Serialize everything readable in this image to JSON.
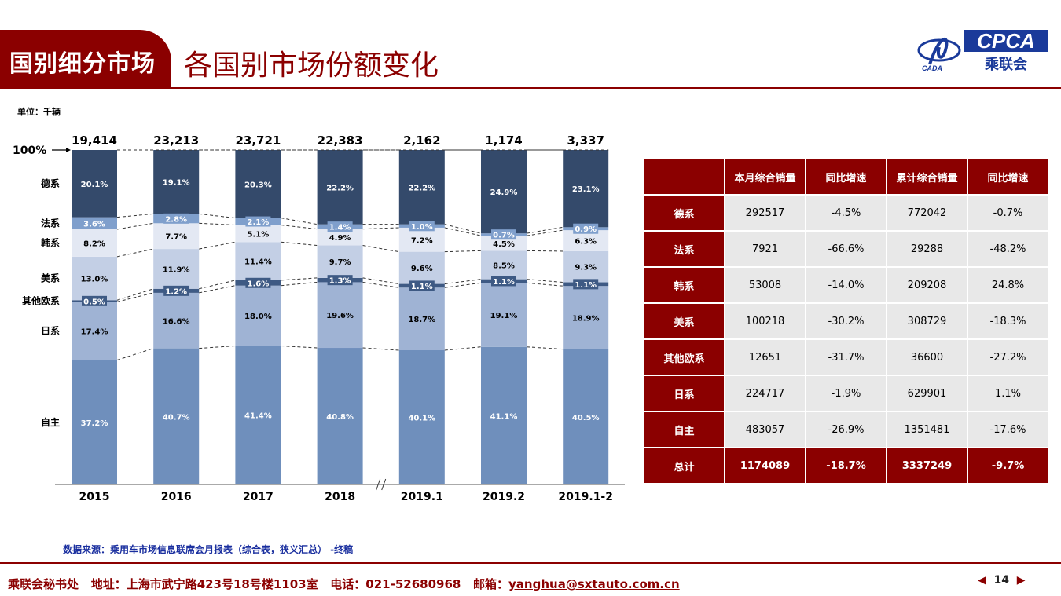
{
  "header": {
    "tag": "国别细分市场",
    "title": "各国别市场份额变化",
    "logo_text_en": "CPCA",
    "logo_text_cn": "乘联会",
    "logo_small": "CADA"
  },
  "unit_label": "单位：千辆",
  "chart_data": {
    "type": "bar",
    "stacked": "percent",
    "categories": [
      "2015",
      "2016",
      "2017",
      "2018",
      "2019.1",
      "2019.2",
      "2019.1-2"
    ],
    "totals": [
      "19,414",
      "23,213",
      "23,721",
      "22,383",
      "2,162",
      "1,174",
      "3,337"
    ],
    "y_top_label": "100%",
    "series": [
      {
        "name": "自主",
        "values": [
          37.2,
          40.7,
          41.4,
          40.8,
          40.1,
          41.1,
          40.5
        ],
        "color": "#6f8fbc",
        "label_color": "#ffffff"
      },
      {
        "name": "日系",
        "values": [
          17.4,
          16.6,
          18.0,
          19.6,
          18.7,
          19.1,
          18.9
        ],
        "color": "#9fb3d4",
        "label_color": "#000000"
      },
      {
        "name": "其他欧系",
        "values": [
          0.5,
          1.2,
          1.6,
          1.3,
          1.1,
          1.1,
          1.1
        ],
        "color": "#3e5a84",
        "label_color": "#ffffff"
      },
      {
        "name": "美系",
        "values": [
          13.0,
          11.9,
          11.4,
          9.7,
          9.6,
          8.5,
          9.3
        ],
        "color": "#c3cfe5",
        "label_color": "#000000"
      },
      {
        "name": "韩系",
        "values": [
          8.2,
          7.7,
          5.1,
          4.9,
          7.2,
          4.5,
          6.3
        ],
        "color": "#e3e8f3",
        "label_color": "#000000"
      },
      {
        "name": "法系",
        "values": [
          3.6,
          2.8,
          2.1,
          1.4,
          1.0,
          0.7,
          0.9
        ],
        "color": "#7f9fcc",
        "label_color": "#ffffff"
      },
      {
        "name": "德系",
        "values": [
          20.1,
          19.1,
          20.3,
          22.2,
          22.2,
          24.9,
          23.1
        ],
        "color": "#344a6b",
        "label_color": "#ffffff"
      }
    ],
    "axis_break_after": "2018",
    "grid": false,
    "legend": "left"
  },
  "table": {
    "headers": [
      "",
      "本月综合销量",
      "同比增速",
      "累计综合销量",
      "同比增速"
    ],
    "rows": [
      {
        "name": "德系",
        "cells": [
          "292517",
          "-4.5%",
          "772042",
          "-0.7%"
        ]
      },
      {
        "name": "法系",
        "cells": [
          "7921",
          "-66.6%",
          "29288",
          "-48.2%"
        ]
      },
      {
        "name": "韩系",
        "cells": [
          "53008",
          "-14.0%",
          "209208",
          "24.8%"
        ]
      },
      {
        "name": "美系",
        "cells": [
          "100218",
          "-30.2%",
          "308729",
          "-18.3%"
        ]
      },
      {
        "name": "其他欧系",
        "cells": [
          "12651",
          "-31.7%",
          "36600",
          "-27.2%"
        ]
      },
      {
        "name": "日系",
        "cells": [
          "224717",
          "-1.9%",
          "629901",
          "1.1%"
        ]
      },
      {
        "name": "自主",
        "cells": [
          "483057",
          "-26.9%",
          "1351481",
          "-17.6%"
        ]
      }
    ],
    "total": {
      "name": "总计",
      "cells": [
        "1174089",
        "-18.7%",
        "3337249",
        "-9.7%"
      ]
    }
  },
  "source": "数据来源：乘用车市场信息联席会月报表（综合表，狭义汇总） -终稿",
  "footer": {
    "org": "乘联会秘书处",
    "address": "地址：上海市武宁路423号18号楼1103室",
    "phone": "电话：021-52680968",
    "mail_label": "邮箱：",
    "mail": "yanghua@sxtauto.com.cn",
    "page": "14"
  }
}
